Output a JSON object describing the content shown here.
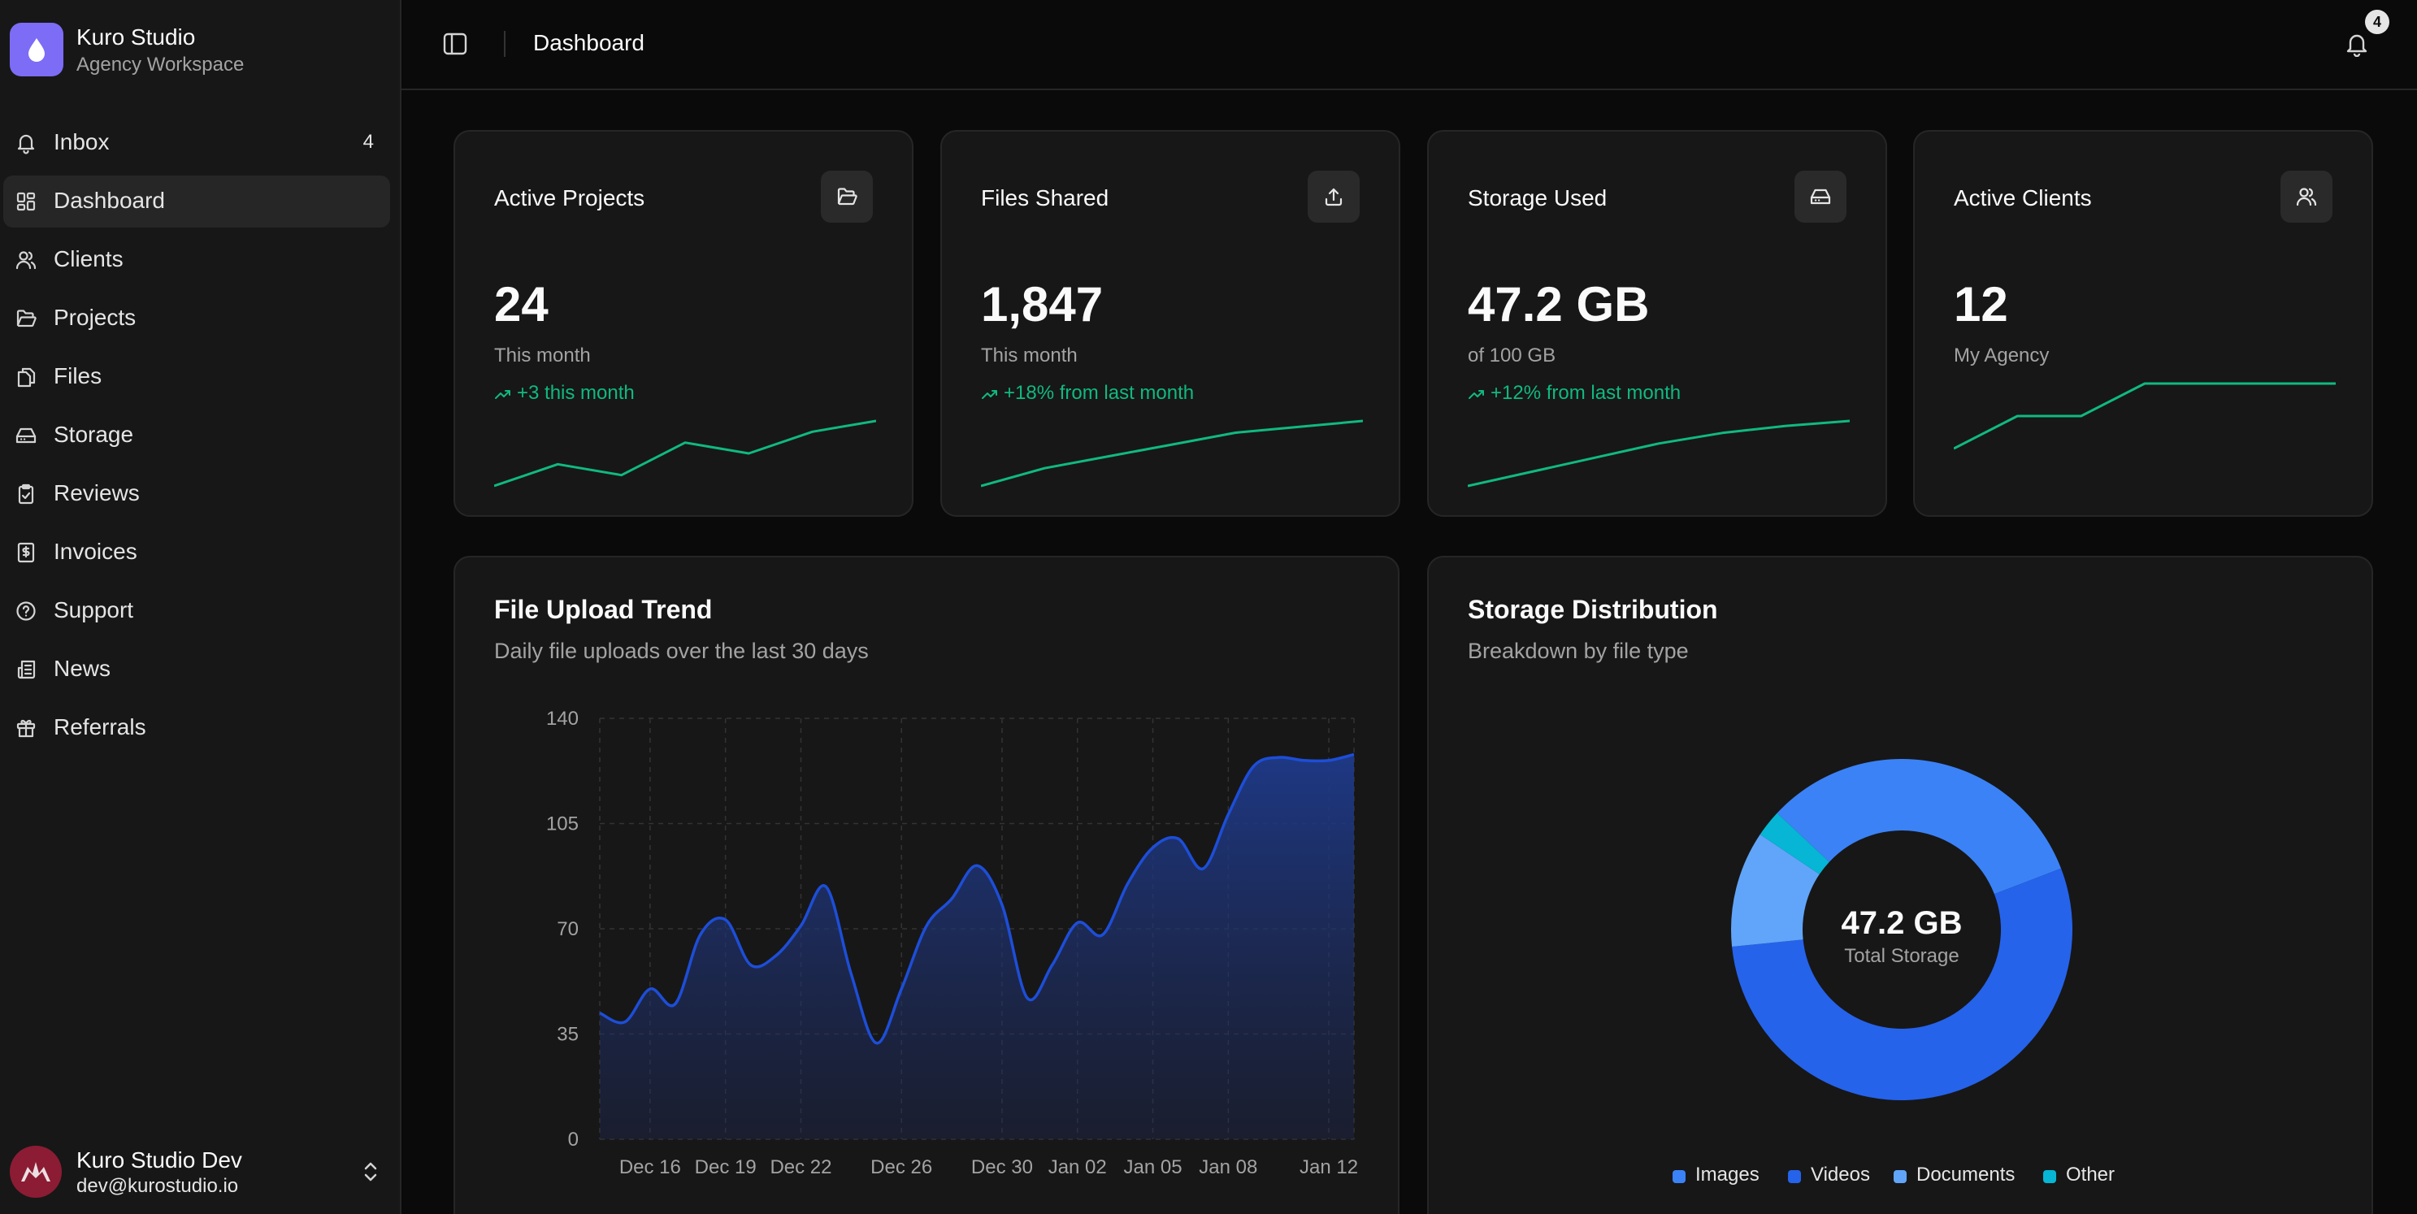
{
  "workspace": {
    "name": "Kuro Studio",
    "subtitle": "Agency Workspace"
  },
  "nav": [
    {
      "label": "Inbox",
      "icon": "bell-icon",
      "badge": "4"
    },
    {
      "label": "Dashboard",
      "icon": "grid-icon",
      "active": true
    },
    {
      "label": "Clients",
      "icon": "users-icon"
    },
    {
      "label": "Projects",
      "icon": "folder-open-icon"
    },
    {
      "label": "Files",
      "icon": "files-icon"
    },
    {
      "label": "Storage",
      "icon": "hard-drive-icon"
    },
    {
      "label": "Reviews",
      "icon": "clipboard-check-icon"
    },
    {
      "label": "Invoices",
      "icon": "dollar-receipt-icon"
    },
    {
      "label": "Support",
      "icon": "help-circle-icon"
    },
    {
      "label": "News",
      "icon": "newspaper-icon"
    },
    {
      "label": "Referrals",
      "icon": "gift-icon"
    }
  ],
  "user": {
    "name": "Kuro Studio Dev",
    "email": "dev@kurostudio.io"
  },
  "header": {
    "title": "Dashboard",
    "notification_count": "4"
  },
  "stats": [
    {
      "title": "Active Projects",
      "icon": "folder-open-icon",
      "value": "24",
      "sub": "This month",
      "trend": "+3 this month",
      "spark": [
        20,
        22,
        21,
        24,
        23,
        25,
        26
      ]
    },
    {
      "title": "Files Shared",
      "icon": "upload-icon",
      "value": "1,847",
      "sub": "This month",
      "trend": "+18% from last month",
      "spark": [
        1500,
        1560,
        1600,
        1640,
        1680,
        1700,
        1720
      ]
    },
    {
      "title": "Storage Used",
      "icon": "hard-drive-icon",
      "value": "47.2 GB",
      "sub": "of 100 GB",
      "trend": "+12% from last month",
      "spark": [
        38,
        40,
        42,
        44,
        45.5,
        46.5,
        47.2
      ]
    },
    {
      "title": "Active Clients",
      "icon": "users-icon",
      "value": "12",
      "sub": "My Agency",
      "trend": "",
      "spark": [
        9,
        10,
        10,
        11,
        11,
        11,
        11
      ]
    }
  ],
  "upload_chart": {
    "title": "File Upload Trend",
    "subtitle": "Daily file uploads over the last 30 days"
  },
  "storage_chart": {
    "title": "Storage Distribution",
    "subtitle": "Breakdown by file type",
    "center_value": "47.2 GB",
    "center_label": "Total Storage"
  },
  "colors": {
    "accent_green": "#10b981",
    "area_blue": "#1d4ed8",
    "images": "#3b82f6",
    "videos": "#2563eb",
    "documents": "#60a5fa",
    "other": "#06b6d4"
  },
  "chart_data": [
    {
      "type": "area",
      "title": "File Upload Trend",
      "x": [
        "Dec 14",
        "Dec 15",
        "Dec 16",
        "Dec 17",
        "Dec 18",
        "Dec 19",
        "Dec 20",
        "Dec 21",
        "Dec 22",
        "Dec 23",
        "Dec 24",
        "Dec 25",
        "Dec 26",
        "Dec 27",
        "Dec 28",
        "Dec 29",
        "Dec 30",
        "Dec 31",
        "Jan 01",
        "Jan 02",
        "Jan 03",
        "Jan 04",
        "Jan 05",
        "Jan 06",
        "Jan 07",
        "Jan 08",
        "Jan 09",
        "Jan 10",
        "Jan 11",
        "Jan 12",
        "Jan 13"
      ],
      "tick_labels": [
        "Dec 16",
        "Dec 19",
        "Dec 22",
        "Dec 26",
        "Dec 30",
        "Jan 02",
        "Jan 05",
        "Jan 08",
        "Jan 12"
      ],
      "values": [
        42,
        39,
        50,
        45,
        68,
        73,
        58,
        61,
        71,
        84,
        55,
        32,
        50,
        71,
        80,
        91,
        78,
        47,
        58,
        72,
        68,
        85,
        97,
        100,
        90,
        108,
        124,
        127,
        126,
        126,
        128
      ],
      "ylim": [
        0,
        140
      ],
      "yticks": [
        0,
        35,
        70,
        105,
        140
      ],
      "grid": true
    },
    {
      "type": "pie",
      "title": "Storage Distribution",
      "categories": [
        "Images",
        "Videos",
        "Documents",
        "Other"
      ],
      "values": [
        15.2,
        25.6,
        5.2,
        1.2
      ],
      "unit": "GB",
      "legend": "bottom"
    }
  ]
}
